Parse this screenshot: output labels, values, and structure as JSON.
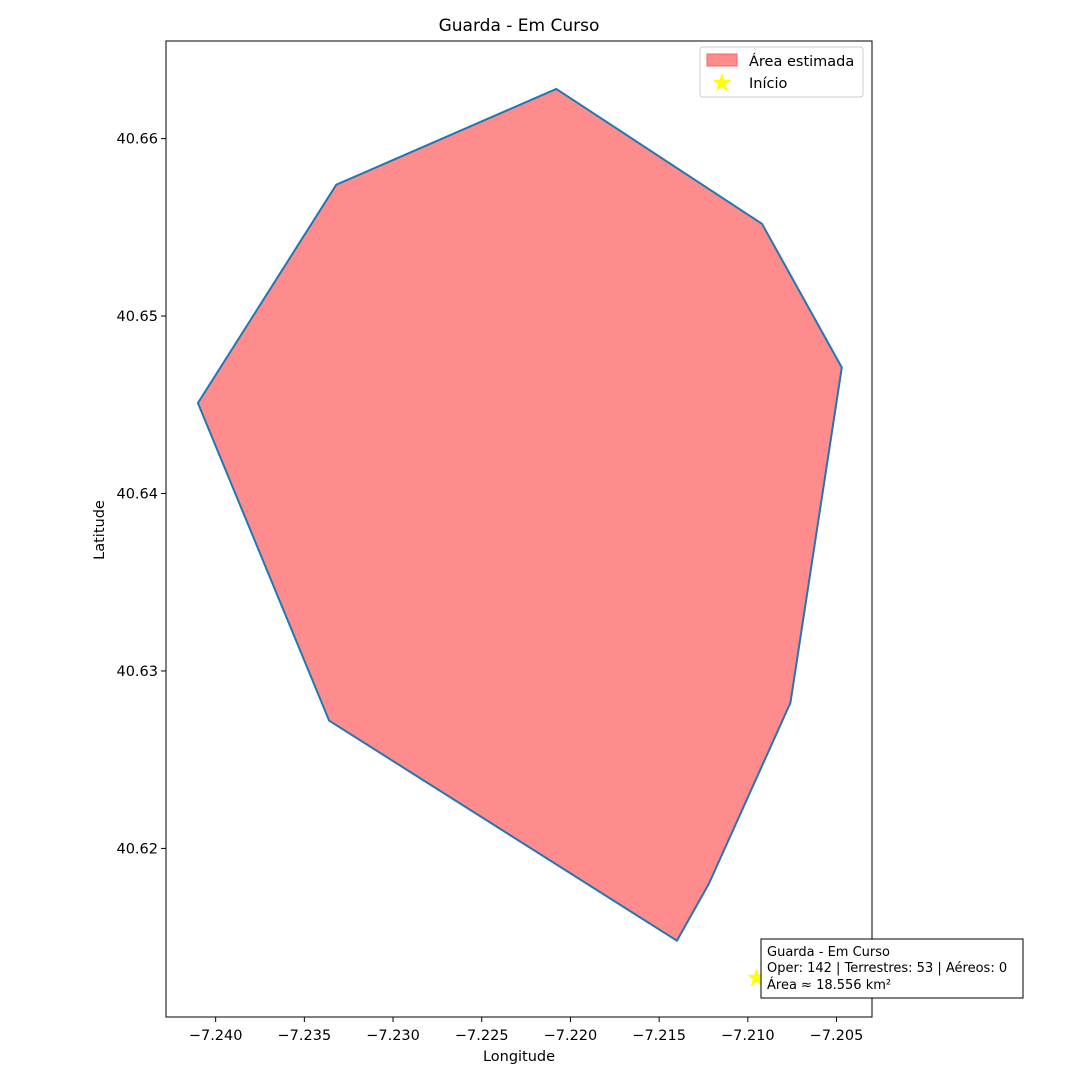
{
  "chart_data": {
    "type": "area",
    "title": "Guarda - Em Curso",
    "xlabel": "Longitude",
    "ylabel": "Latitude",
    "xlim": [
      -7.2428,
      -7.203
    ],
    "ylim": [
      40.6105,
      40.6655
    ],
    "xticks": [
      {
        "value": -7.24,
        "label": "−7.240"
      },
      {
        "value": -7.235,
        "label": "−7.235"
      },
      {
        "value": -7.23,
        "label": "−7.230"
      },
      {
        "value": -7.225,
        "label": "−7.225"
      },
      {
        "value": -7.22,
        "label": "−7.220"
      },
      {
        "value": -7.215,
        "label": "−7.215"
      },
      {
        "value": -7.21,
        "label": "−7.210"
      },
      {
        "value": -7.205,
        "label": "−7.205"
      }
    ],
    "yticks": [
      {
        "value": 40.62,
        "label": "40.62"
      },
      {
        "value": 40.63,
        "label": "40.63"
      },
      {
        "value": 40.64,
        "label": "40.64"
      },
      {
        "value": 40.65,
        "label": "40.65"
      },
      {
        "value": 40.66,
        "label": "40.66"
      }
    ],
    "polygon": [
      [
        -7.2208,
        40.6628
      ],
      [
        -7.2092,
        40.6552
      ],
      [
        -7.2047,
        40.6471
      ],
      [
        -7.2076,
        40.6282
      ],
      [
        -7.2122,
        40.618
      ],
      [
        -7.214,
        40.6148
      ],
      [
        -7.2336,
        40.6272
      ],
      [
        -7.241,
        40.6451
      ],
      [
        -7.2332,
        40.6574
      ]
    ],
    "start_point": [
      -7.2095,
      40.6127
    ],
    "grid": false,
    "legend_position": "top-right",
    "legend": [
      {
        "label": "Área estimada",
        "type": "patch"
      },
      {
        "label": "Início",
        "type": "star"
      }
    ],
    "annotation": {
      "lines": [
        "Guarda - Em Curso",
        "Oper: 142 | Terrestres: 53 | Aéreos: 0",
        "Área ≈ 18.556 km²"
      ]
    },
    "colors": {
      "area_fill": "#ff8c8c",
      "area_edge": "#1f77b4",
      "start": "#ffff00"
    }
  }
}
